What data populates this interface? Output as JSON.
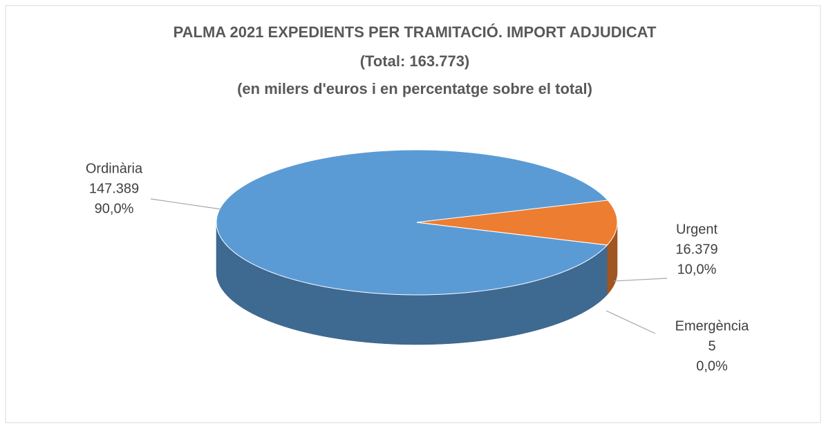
{
  "chart_data": {
    "type": "pie3d",
    "title": "PALMA 2021 EXPEDIENTS PER TRAMITACIÓ. IMPORT ADJUDICAT",
    "subtitle": "(Total: 163.773)",
    "subtitle2": "(en milers d'euros i en percentatge sobre el total)",
    "categories": [
      "Ordinària",
      "Urgent",
      "Emergència"
    ],
    "values": [
      147389,
      16379,
      5
    ],
    "value_labels": [
      "147.389",
      "16.379",
      "5"
    ],
    "percentages": [
      90.0,
      10.0,
      0.0
    ],
    "percentage_labels": [
      "90,0%",
      "10,0%",
      "0,0%"
    ],
    "colors": [
      "#5b9bd5",
      "#ed7d31",
      "#a5a5a5"
    ]
  }
}
